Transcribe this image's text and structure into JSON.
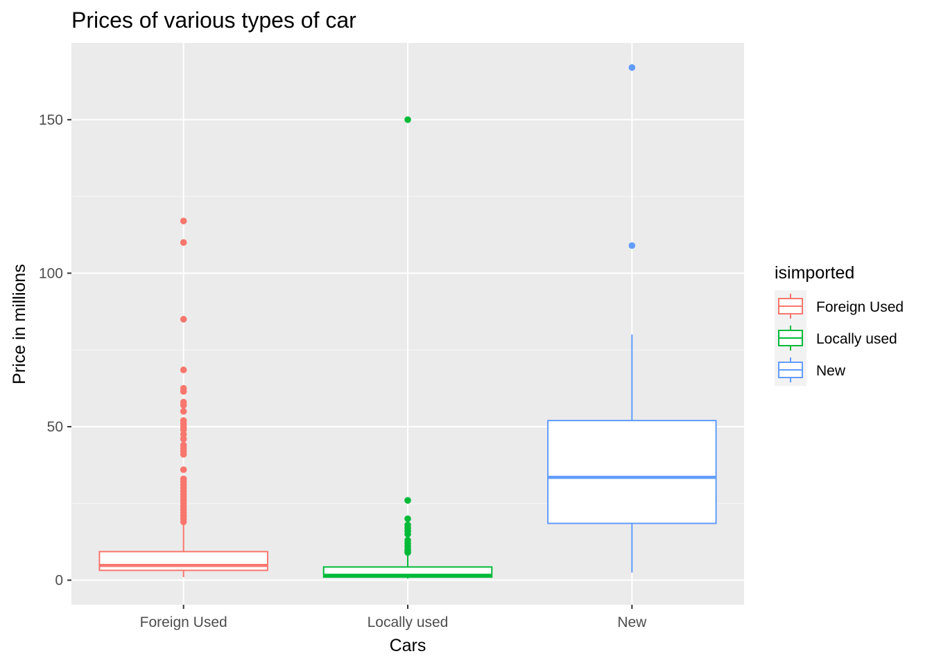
{
  "chart_data": {
    "type": "boxplot",
    "title": "Prices of various types of car",
    "xlabel": "Cars",
    "ylabel": "Price in millions",
    "ylim": [
      -8,
      175
    ],
    "yticks": [
      0,
      50,
      100,
      150
    ],
    "grid": true,
    "legend": {
      "title": "isimported",
      "placement": "right",
      "entries": [
        "Foreign Used",
        "Locally used",
        "New"
      ]
    },
    "categories": [
      "Foreign Used",
      "Locally used",
      "New"
    ],
    "series": [
      {
        "category": "Foreign Used",
        "color": "#F8766D",
        "q1": 3.2,
        "median": 4.8,
        "q3": 9.3,
        "whisker_low": 1.0,
        "whisker_high": 18.5,
        "outliers": [
          117,
          110,
          85,
          68.5,
          62.5,
          61.5,
          58,
          57,
          55,
          52,
          51,
          50,
          49,
          47.5,
          46,
          44,
          43,
          42,
          41,
          36,
          33,
          32,
          31,
          30,
          29,
          28,
          27,
          26,
          25,
          24,
          23,
          22,
          21,
          20,
          19
        ]
      },
      {
        "category": "Locally used",
        "color": "#00BA38",
        "q1": 1.0,
        "median": 1.6,
        "q3": 4.3,
        "whisker_low": 0.5,
        "whisker_high": 8.5,
        "outliers": [
          150,
          26,
          20,
          18,
          17,
          16,
          15,
          13,
          12,
          11,
          10,
          9.5,
          9
        ]
      },
      {
        "category": "New",
        "color": "#619CFF",
        "q1": 18.5,
        "median": 33.5,
        "q3": 52,
        "whisker_low": 2.5,
        "whisker_high": 80,
        "outliers": [
          167,
          109
        ]
      }
    ]
  }
}
